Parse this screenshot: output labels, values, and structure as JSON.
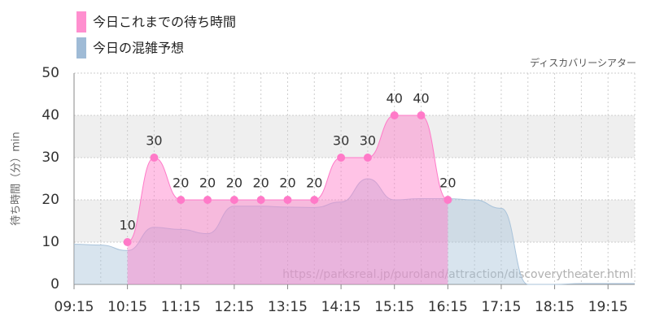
{
  "chart_data": {
    "type": "area",
    "legend": [
      "今日これまでの待ち時間",
      "今日の混雑予想"
    ],
    "subtitle": "ディスカバリーシアター",
    "watermark": "https://parksreal.jp/puroland/attraction/discoverytheater.html",
    "y_label": "待ち時間（分）min",
    "x": [
      "09:15",
      "09:45",
      "10:15",
      "10:45",
      "11:15",
      "11:45",
      "12:15",
      "12:45",
      "13:15",
      "13:45",
      "14:15",
      "14:45",
      "15:15",
      "15:45",
      "16:15",
      "16:45",
      "17:15",
      "17:45",
      "18:15",
      "18:45",
      "19:15",
      "19:45"
    ],
    "xlim": [
      "09:15",
      "19:45"
    ],
    "xticks": [
      "09:15",
      "10:15",
      "11:15",
      "12:15",
      "13:15",
      "14:15",
      "15:15",
      "16:15",
      "17:15",
      "18:15",
      "19:15"
    ],
    "ylim": [
      0,
      50
    ],
    "yticks": [
      0,
      10,
      20,
      30,
      40,
      50
    ],
    "grid": true,
    "series": [
      {
        "name": "今日の混雑予想",
        "color": "#a9c3da",
        "values": [
          9.5,
          9.3,
          8,
          13.5,
          13,
          12,
          18.5,
          18.5,
          18.3,
          18.2,
          19.5,
          25,
          20,
          20.3,
          20.3,
          20,
          18,
          0,
          0,
          0.2,
          0.2,
          0.2
        ]
      },
      {
        "name": "今日これまでの待ち時間",
        "color": "#ff7ac8",
        "values": [
          null,
          null,
          10,
          30,
          20,
          20,
          20,
          20,
          20,
          20,
          30,
          30,
          40,
          40,
          20,
          null,
          null,
          null,
          null,
          null,
          null,
          null
        ]
      }
    ]
  }
}
